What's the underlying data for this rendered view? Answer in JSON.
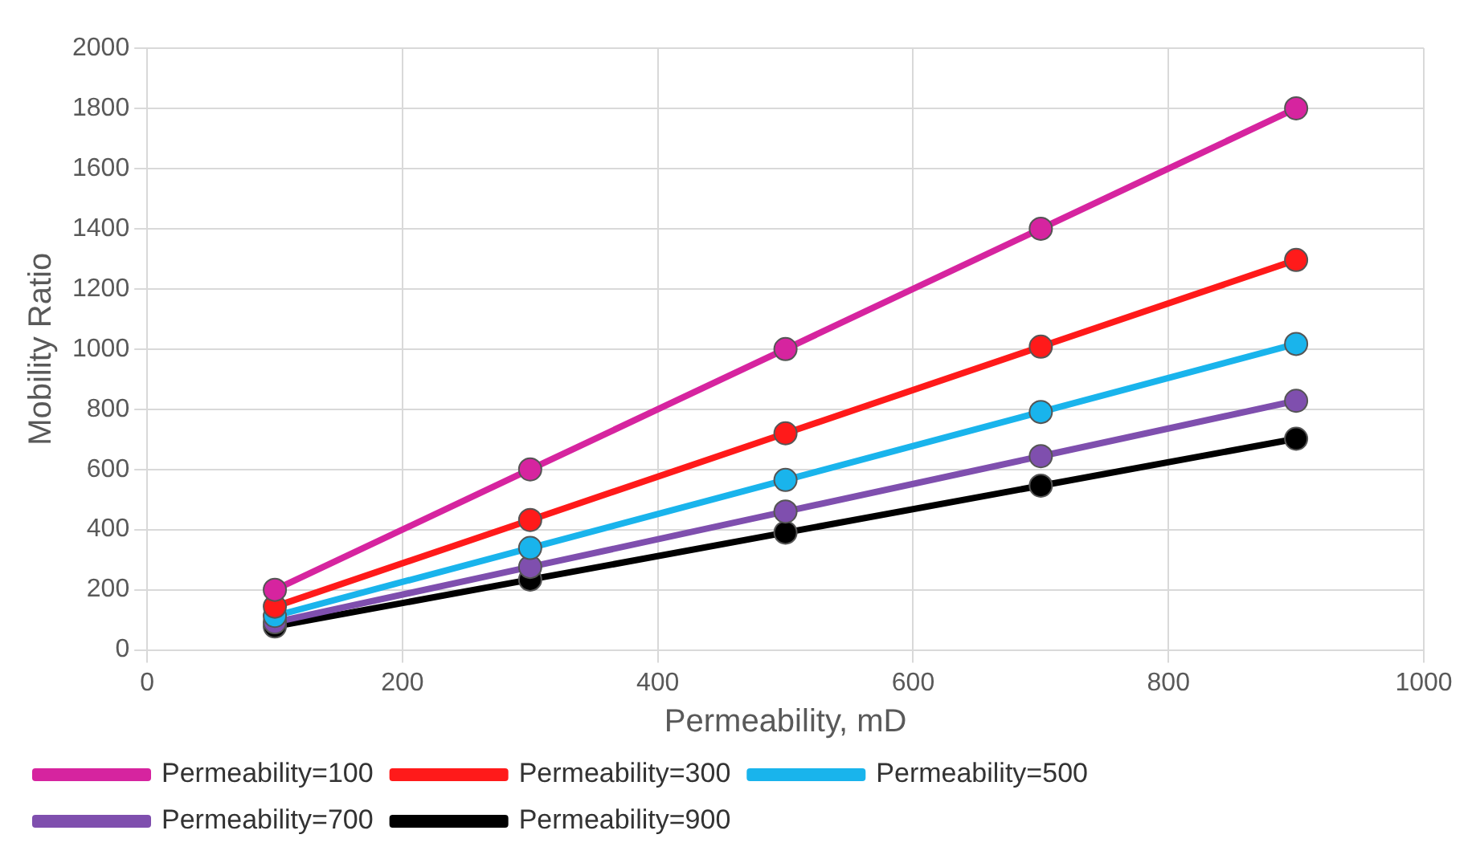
{
  "chart_data": {
    "type": "line",
    "xlabel": "Permeability, mD",
    "ylabel": "Mobility Ratio",
    "x": [
      100,
      300,
      500,
      700,
      900
    ],
    "series": [
      {
        "name": "Permeability=100",
        "color": "#d6249f",
        "values": [
          200,
          600,
          1000,
          1400,
          1800
        ]
      },
      {
        "name": "Permeability=300",
        "color": "#ff1a1a",
        "values": [
          144,
          432,
          720,
          1008,
          1296
        ]
      },
      {
        "name": "Permeability=500",
        "color": "#19b4ec",
        "values": [
          113,
          339,
          565,
          791,
          1017
        ]
      },
      {
        "name": "Permeability=700",
        "color": "#7f4fae",
        "values": [
          92,
          276,
          460,
          644,
          828
        ]
      },
      {
        "name": "Permeability=900",
        "color": "#000000",
        "values": [
          78,
          234,
          390,
          546,
          702
        ]
      }
    ],
    "xlim": [
      0,
      1000
    ],
    "xticks": [
      0,
      200,
      400,
      600,
      800,
      1000
    ],
    "ylim": [
      0,
      2000
    ],
    "yticks": [
      0,
      200,
      400,
      600,
      800,
      1000,
      1200,
      1400,
      1600,
      1800,
      2000
    ],
    "grid": true,
    "legend": "bottom",
    "marker": "circle",
    "line_style": "solid"
  }
}
